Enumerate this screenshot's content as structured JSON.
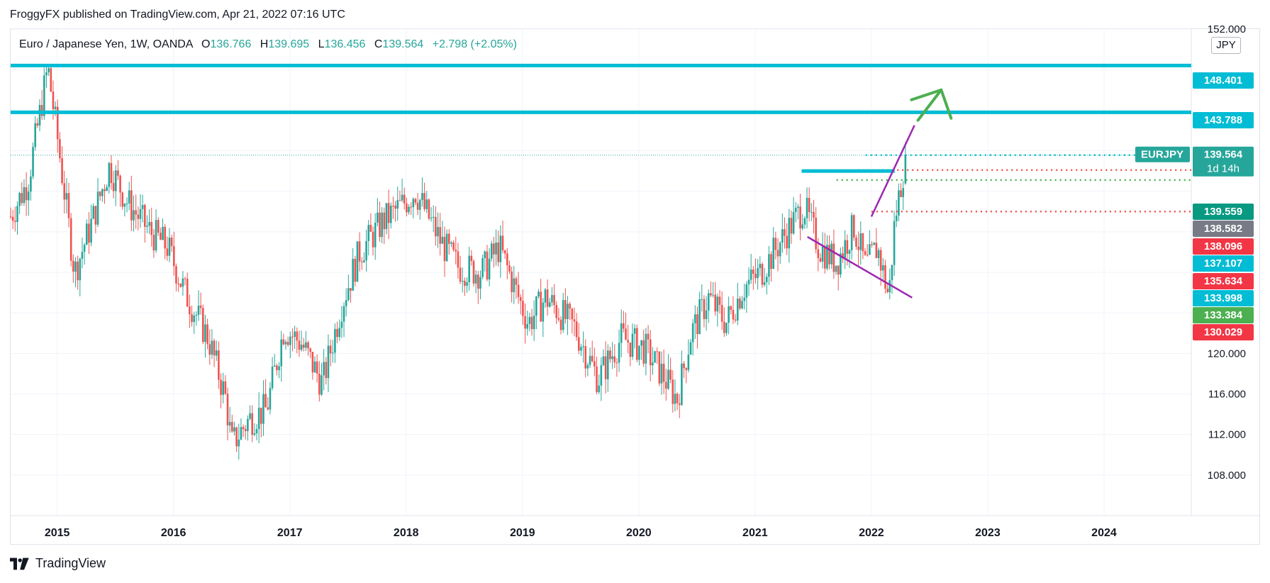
{
  "header": {
    "publish_line": "FroggyFX published on TradingView.com, Apr 21, 2022 07:16 UTC"
  },
  "legend": {
    "symbol": "Euro / Japanese Yen, 1W, OANDA",
    "o_label": "O",
    "o_value": "136.766",
    "h_label": "H",
    "h_value": "139.695",
    "l_label": "L",
    "l_value": "136.456",
    "c_label": "C",
    "c_value": "139.564",
    "change": "+2.798 (+2.05%)"
  },
  "unit": "JPY",
  "footer": {
    "brand": "TradingView"
  },
  "colors": {
    "up": "#26a69a",
    "down": "#ef5350",
    "level": "#00bcd4",
    "purple": "#9c27b0",
    "green_arrow": "#4caf50",
    "label_red": "#f23645",
    "label_teal": "#089981",
    "label_gray": "#787b86",
    "label_cyan": "#00bcd4",
    "label_green": "#4caf50",
    "label_symbol": "#26a69a"
  },
  "chart_data": {
    "type": "candlestick",
    "symbol_tag": "EURJPY",
    "countdown": "1d 14h",
    "y_ticks": [
      "152.000",
      "120.000",
      "116.000",
      "112.000",
      "108.000"
    ],
    "y_range": [
      104,
      152
    ],
    "x_ticks": [
      "2015",
      "2016",
      "2017",
      "2018",
      "2019",
      "2020",
      "2021",
      "2022",
      "2023",
      "2024"
    ],
    "last_close": 139.564,
    "price_labels": [
      {
        "value": "148.401",
        "color": "level",
        "horizontal_line": true
      },
      {
        "value": "143.788",
        "color": "level",
        "horizontal_line": true
      },
      {
        "value": "139.559",
        "color": "label_teal"
      },
      {
        "value": "138.582",
        "color": "label_gray"
      },
      {
        "value": "138.096",
        "color": "label_red"
      },
      {
        "value": "137.107",
        "color": "label_cyan"
      },
      {
        "value": "135.634",
        "color": "label_red"
      },
      {
        "value": "133.998",
        "color": "label_cyan"
      },
      {
        "value": "133.384",
        "color": "label_green"
      },
      {
        "value": "130.029",
        "color": "label_red"
      }
    ],
    "path": [
      [
        2014.6,
        133.5
      ],
      [
        2014.75,
        137.0
      ],
      [
        2014.92,
        148.2
      ],
      [
        2015.0,
        141.5
      ],
      [
        2015.15,
        128.0
      ],
      [
        2015.3,
        133.0
      ],
      [
        2015.45,
        138.5
      ],
      [
        2015.6,
        135.0
      ],
      [
        2015.8,
        132.0
      ],
      [
        2015.95,
        130.5
      ],
      [
        2016.1,
        126.0
      ],
      [
        2016.3,
        121.5
      ],
      [
        2016.45,
        115.5
      ],
      [
        2016.5,
        111.0
      ],
      [
        2016.65,
        113.5
      ],
      [
        2016.8,
        114.5
      ],
      [
        2016.95,
        122.5
      ],
      [
        2017.1,
        121.0
      ],
      [
        2017.28,
        117.0
      ],
      [
        2017.45,
        125.0
      ],
      [
        2017.6,
        130.0
      ],
      [
        2017.8,
        133.0
      ],
      [
        2017.95,
        134.5
      ],
      [
        2018.08,
        136.0
      ],
      [
        2018.3,
        131.0
      ],
      [
        2018.45,
        128.5
      ],
      [
        2018.65,
        128.0
      ],
      [
        2018.8,
        130.5
      ],
      [
        2018.95,
        126.0
      ],
      [
        2019.05,
        123.0
      ],
      [
        2019.2,
        125.5
      ],
      [
        2019.45,
        122.5
      ],
      [
        2019.65,
        117.5
      ],
      [
        2019.85,
        121.5
      ],
      [
        2020.05,
        120.5
      ],
      [
        2020.2,
        118.0
      ],
      [
        2020.33,
        115.5
      ],
      [
        2020.45,
        122.0
      ],
      [
        2020.6,
        125.5
      ],
      [
        2020.75,
        123.0
      ],
      [
        2020.9,
        126.5
      ],
      [
        2021.05,
        128.0
      ],
      [
        2021.3,
        132.5
      ],
      [
        2021.42,
        134.5
      ],
      [
        2021.55,
        130.5
      ],
      [
        2021.7,
        129.0
      ],
      [
        2021.85,
        132.5
      ],
      [
        2021.95,
        128.5
      ],
      [
        2022.05,
        130.5
      ],
      [
        2022.15,
        125.5
      ],
      [
        2022.2,
        133.0
      ],
      [
        2022.25,
        136.5
      ],
      [
        2022.3,
        139.564
      ]
    ],
    "annotations": [
      {
        "type": "hline",
        "value": 148.401,
        "color": "level"
      },
      {
        "type": "hline",
        "value": 143.788,
        "color": "level"
      },
      {
        "type": "segment",
        "x": [
          2021.4,
          2022.2
        ],
        "y": [
          138.0,
          138.0
        ],
        "color": "level"
      },
      {
        "type": "segment",
        "x": [
          2021.45,
          2022.35
        ],
        "y": [
          131.5,
          125.5
        ],
        "color": "purple"
      },
      {
        "type": "segment",
        "x": [
          2022.0,
          2022.37
        ],
        "y": [
          133.5,
          142.5
        ],
        "color": "purple"
      },
      {
        "type": "arrow",
        "x": [
          2022.4,
          2022.6
        ],
        "y": [
          143.0,
          146.0
        ],
        "color": "green_arrow"
      }
    ]
  }
}
